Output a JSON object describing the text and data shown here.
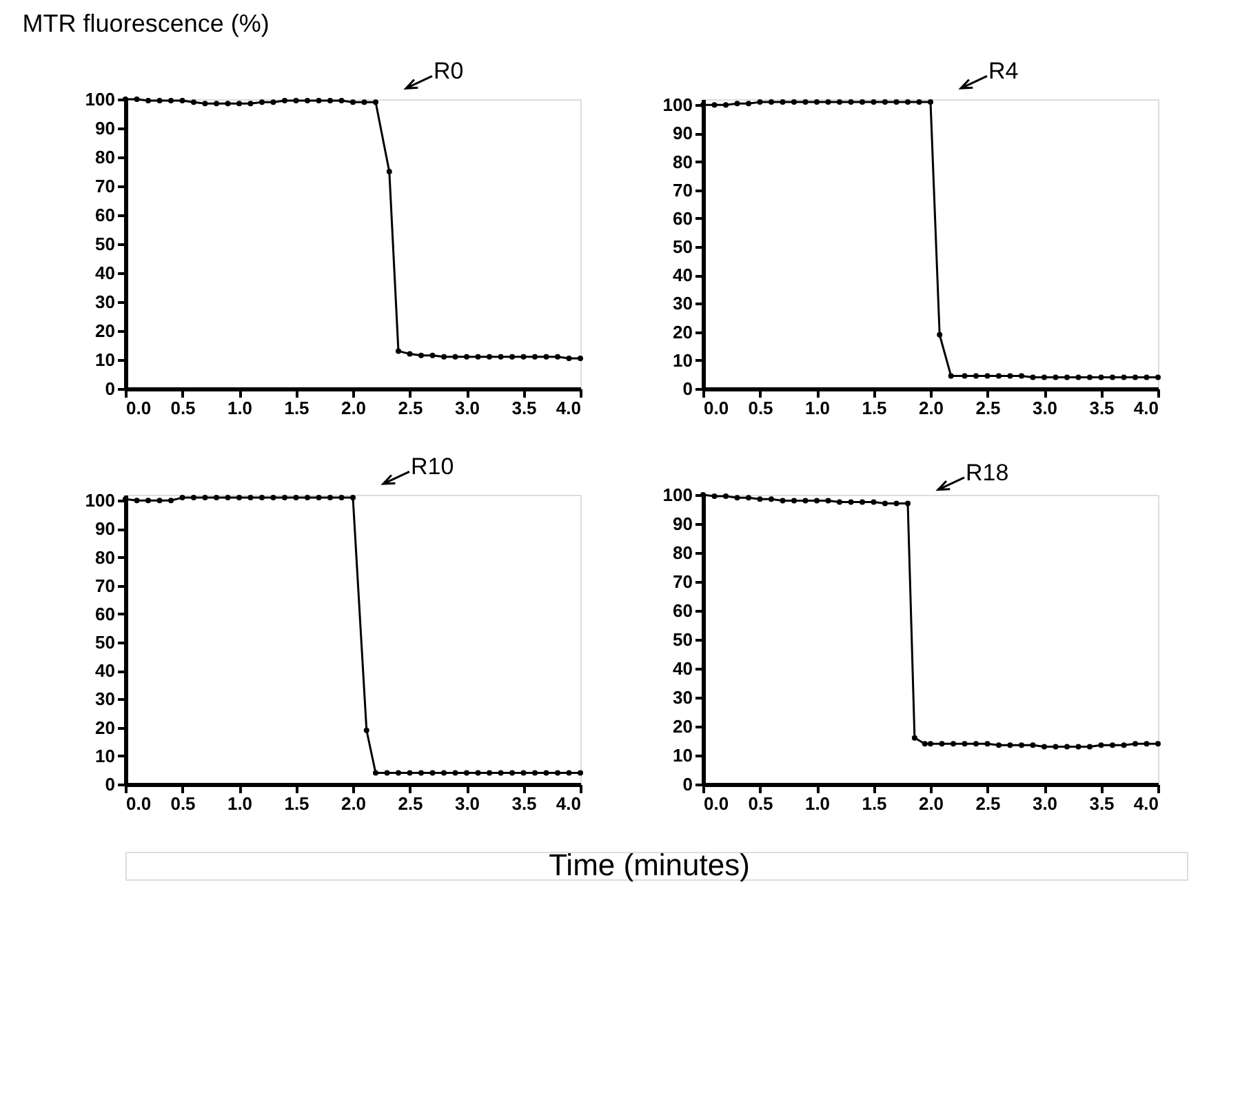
{
  "chart_data": [
    {
      "type": "line",
      "ylabel": "MTR fluorescence (%)",
      "annotations": [
        {
          "text": "R0",
          "x": 2.2,
          "y": 99
        }
      ],
      "marker": "circle",
      "line_style": "solid",
      "xlim": [
        0,
        4
      ],
      "ylim": [
        0,
        100
      ],
      "xticks": [
        {
          "value": 0,
          "label": "0.0"
        },
        {
          "value": 0.5,
          "label": "0.5"
        },
        {
          "value": 1,
          "label": "1.0"
        },
        {
          "value": 1.5,
          "label": "1.5"
        },
        {
          "value": 2,
          "label": "2.0"
        },
        {
          "value": 2.5,
          "label": "2.5"
        },
        {
          "value": 3,
          "label": "3.0"
        },
        {
          "value": 3.5,
          "label": "3.5"
        },
        {
          "value": 4,
          "label": "4.0"
        }
      ],
      "yticks": [
        0,
        10,
        20,
        30,
        40,
        50,
        60,
        70,
        80,
        90,
        100
      ],
      "series": [
        {
          "color": "#000000",
          "x": [
            0,
            0.1,
            0.2,
            0.3,
            0.4,
            0.5,
            0.6,
            0.7,
            0.8,
            0.9,
            1.0,
            1.1,
            1.2,
            1.3,
            1.4,
            1.5,
            1.6,
            1.7,
            1.8,
            1.9,
            2.0,
            2.1,
            2.2,
            2.32,
            2.4,
            2.5,
            2.6,
            2.7,
            2.8,
            2.9,
            3.0,
            3.1,
            3.2,
            3.3,
            3.4,
            3.5,
            3.6,
            3.7,
            3.8,
            3.9,
            4.0
          ],
          "values": [
            100,
            100,
            99.5,
            99.5,
            99.5,
            99.5,
            99,
            98.5,
            98.5,
            98.5,
            98.5,
            98.5,
            99,
            99,
            99.5,
            99.5,
            99.5,
            99.5,
            99.5,
            99.5,
            99,
            99,
            99,
            75,
            13,
            12,
            11.5,
            11.5,
            11,
            11,
            11,
            11,
            11,
            11,
            11,
            11,
            11,
            11,
            11,
            10.5,
            10.5
          ]
        }
      ]
    },
    {
      "type": "line",
      "annotations": [
        {
          "text": "R4",
          "x": 2.0,
          "y": 101
        }
      ],
      "marker": "circle",
      "line_style": "solid",
      "xlim": [
        0,
        4
      ],
      "ylim": [
        0,
        102
      ],
      "xticks": [
        {
          "value": 0,
          "label": "0.0"
        },
        {
          "value": 0.5,
          "label": "0.5"
        },
        {
          "value": 1,
          "label": "1.0"
        },
        {
          "value": 1.5,
          "label": "1.5"
        },
        {
          "value": 2,
          "label": "2.0"
        },
        {
          "value": 2.5,
          "label": "2.5"
        },
        {
          "value": 3,
          "label": "3.0"
        },
        {
          "value": 3.5,
          "label": "3.5"
        },
        {
          "value": 4,
          "label": "4.0"
        }
      ],
      "yticks": [
        0,
        10,
        20,
        30,
        40,
        50,
        60,
        70,
        80,
        90,
        100
      ],
      "series": [
        {
          "color": "#000000",
          "x": [
            0,
            0.1,
            0.2,
            0.3,
            0.4,
            0.5,
            0.6,
            0.7,
            0.8,
            0.9,
            1.0,
            1.1,
            1.2,
            1.3,
            1.4,
            1.5,
            1.6,
            1.7,
            1.8,
            1.9,
            2.0,
            2.08,
            2.18,
            2.3,
            2.4,
            2.5,
            2.6,
            2.7,
            2.8,
            2.9,
            3.0,
            3.1,
            3.2,
            3.3,
            3.4,
            3.5,
            3.6,
            3.7,
            3.8,
            3.9,
            4.0
          ],
          "values": [
            100,
            100,
            100,
            100.5,
            100.5,
            101,
            101,
            101,
            101,
            101,
            101,
            101,
            101,
            101,
            101,
            101,
            101,
            101,
            101,
            101,
            101,
            19,
            4.5,
            4.5,
            4.5,
            4.5,
            4.5,
            4.5,
            4.5,
            4,
            4,
            4,
            4,
            4,
            4,
            4,
            4,
            4,
            4,
            4,
            4
          ]
        }
      ]
    },
    {
      "type": "line",
      "annotations": [
        {
          "text": "R10",
          "x": 2.0,
          "y": 101
        }
      ],
      "marker": "circle",
      "line_style": "solid",
      "xlim": [
        0,
        4
      ],
      "ylim": [
        0,
        102
      ],
      "xticks": [
        {
          "value": 0,
          "label": "0.0"
        },
        {
          "value": 0.5,
          "label": "0.5"
        },
        {
          "value": 1,
          "label": "1.0"
        },
        {
          "value": 1.5,
          "label": "1.5"
        },
        {
          "value": 2,
          "label": "2.0"
        },
        {
          "value": 2.5,
          "label": "2.5"
        },
        {
          "value": 3,
          "label": "3.0"
        },
        {
          "value": 3.5,
          "label": "3.5"
        },
        {
          "value": 4,
          "label": "4.0"
        }
      ],
      "yticks": [
        0,
        10,
        20,
        30,
        40,
        50,
        60,
        70,
        80,
        90,
        100
      ],
      "series": [
        {
          "color": "#000000",
          "x": [
            0,
            0.1,
            0.2,
            0.3,
            0.4,
            0.5,
            0.6,
            0.7,
            0.8,
            0.9,
            1.0,
            1.1,
            1.2,
            1.3,
            1.4,
            1.5,
            1.6,
            1.7,
            1.8,
            1.9,
            2.0,
            2.12,
            2.2,
            2.3,
            2.4,
            2.5,
            2.6,
            2.7,
            2.8,
            2.9,
            3.0,
            3.1,
            3.2,
            3.3,
            3.4,
            3.5,
            3.6,
            3.7,
            3.8,
            3.9,
            4.0
          ],
          "values": [
            100.5,
            100,
            100,
            100,
            100,
            101,
            101,
            101,
            101,
            101,
            101,
            101,
            101,
            101,
            101,
            101,
            101,
            101,
            101,
            101,
            101,
            19,
            4,
            4,
            4,
            4,
            4,
            4,
            4,
            4,
            4,
            4,
            4,
            4,
            4,
            4,
            4,
            4,
            4,
            4,
            4
          ]
        }
      ]
    },
    {
      "type": "line",
      "xlabel": "Time (minutes)",
      "annotations": [
        {
          "text": "R18",
          "x": 1.8,
          "y": 97
        }
      ],
      "marker": "circle",
      "line_style": "solid",
      "xlim": [
        0,
        4
      ],
      "ylim": [
        0,
        100
      ],
      "xticks": [
        {
          "value": 0,
          "label": "0.0"
        },
        {
          "value": 0.5,
          "label": "0.5"
        },
        {
          "value": 1,
          "label": "1.0"
        },
        {
          "value": 1.5,
          "label": "1.5"
        },
        {
          "value": 2,
          "label": "2.0"
        },
        {
          "value": 2.5,
          "label": "2.5"
        },
        {
          "value": 3,
          "label": "3.0"
        },
        {
          "value": 3.5,
          "label": "3.5"
        },
        {
          "value": 4,
          "label": "4.0"
        }
      ],
      "yticks": [
        0,
        10,
        20,
        30,
        40,
        50,
        60,
        70,
        80,
        90,
        100
      ],
      "series": [
        {
          "color": "#000000",
          "x": [
            0,
            0.1,
            0.2,
            0.3,
            0.4,
            0.5,
            0.6,
            0.7,
            0.8,
            0.9,
            1.0,
            1.1,
            1.2,
            1.3,
            1.4,
            1.5,
            1.6,
            1.7,
            1.8,
            1.86,
            1.95,
            2.0,
            2.1,
            2.2,
            2.3,
            2.4,
            2.5,
            2.6,
            2.7,
            2.8,
            2.9,
            3.0,
            3.1,
            3.2,
            3.3,
            3.4,
            3.5,
            3.6,
            3.7,
            3.8,
            3.9,
            4.0
          ],
          "values": [
            100,
            99.5,
            99.5,
            99,
            99,
            98.5,
            98.5,
            98,
            98,
            98,
            98,
            98,
            97.5,
            97.5,
            97.5,
            97.5,
            97,
            97,
            97,
            16,
            14,
            14,
            14,
            14,
            14,
            14,
            14,
            13.5,
            13.5,
            13.5,
            13.5,
            13,
            13,
            13,
            13,
            13,
            13.5,
            13.5,
            13.5,
            14,
            14,
            14
          ]
        }
      ]
    }
  ]
}
